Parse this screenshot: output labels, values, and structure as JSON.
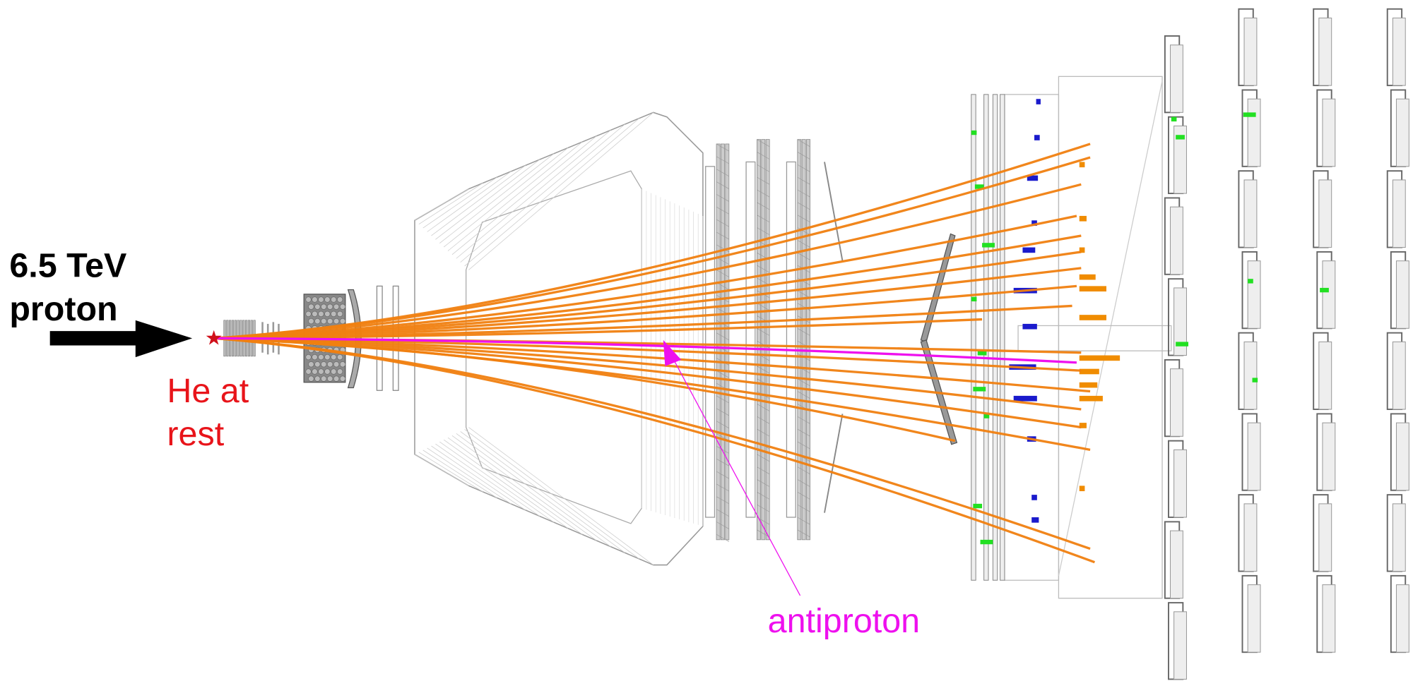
{
  "labels": {
    "beam": [
      "6.5 TeV",
      "proton"
    ],
    "target": [
      "He at",
      "rest"
    ],
    "particle": "antiproton"
  }
}
